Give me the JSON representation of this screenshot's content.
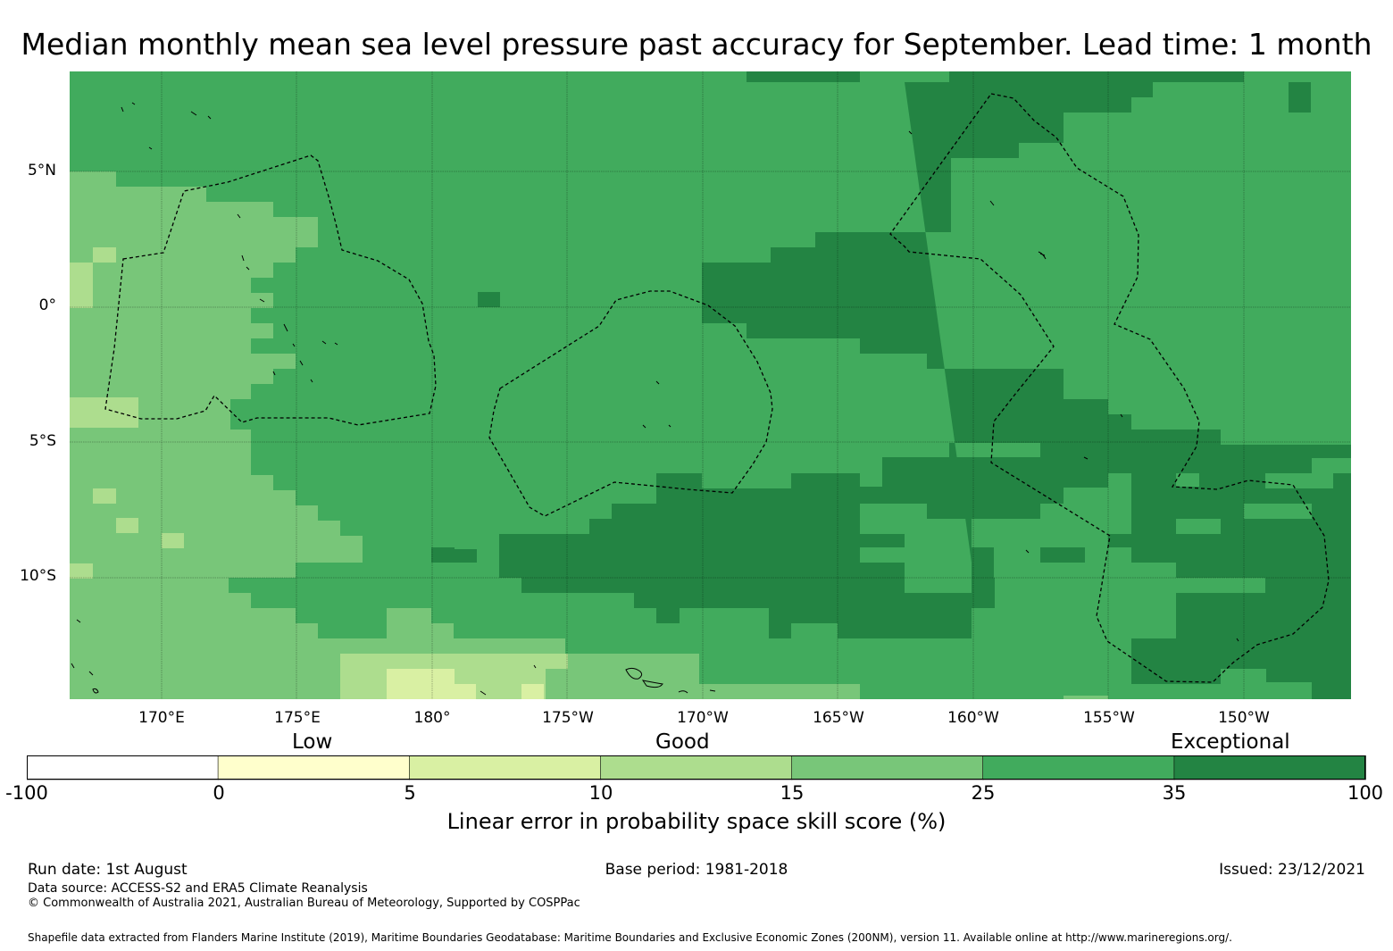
{
  "title": "Median monthly mean sea level pressure past accuracy for September. Lead time: 1 month",
  "map": {
    "lat_labels": [
      "5°N",
      "0°",
      "5°S",
      "10°S"
    ],
    "lon_labels": [
      "170°E",
      "175°E",
      "180°",
      "175°W",
      "170°W",
      "165°W",
      "160°W",
      "155°W",
      "150°W"
    ],
    "extent": {
      "lon_min": 166.6,
      "lon_max": 213.9,
      "lat_min": -14.6,
      "lat_max": 8.5
    },
    "palette": {
      "c0": "#FFFFCC",
      "c1": "#D9F0A3",
      "c2": "#ADDD8E",
      "c3": "#78C679",
      "c4": "#41AB5D",
      "c5": "#238443"
    }
  },
  "colorbar": {
    "category_labels": [
      "Low",
      "Good",
      "Exceptional"
    ],
    "ticks": [
      "-100",
      "0",
      "5",
      "10",
      "15",
      "25",
      "35",
      "100"
    ],
    "colors": [
      "#FFFFFF",
      "#FFFFCC",
      "#D9F0A3",
      "#ADDD8E",
      "#78C679",
      "#41AB5D",
      "#238443"
    ],
    "label": "Linear error in probability space skill score (%)"
  },
  "footer": {
    "run_date": "Run date: 1st August",
    "base_period": "Base period: 1981-2018",
    "issued": "Issued: 23/12/2021",
    "data_source": "Data source: ACCESS-S2 and ERA5 Climate Reanalysis",
    "copyright": "© Commonwealth of Australia 2021, Australian Bureau of Meteorology, Supported by COSPPac",
    "shapefile": "Shapefile data extracted from Flanders Marine Institute (2019), Maritime Boundaries Geodatabase: Maritime Boundaries and Exclusive Economic Zones (200NM), version 11. Available online at http://www.marineregions.org/."
  }
}
